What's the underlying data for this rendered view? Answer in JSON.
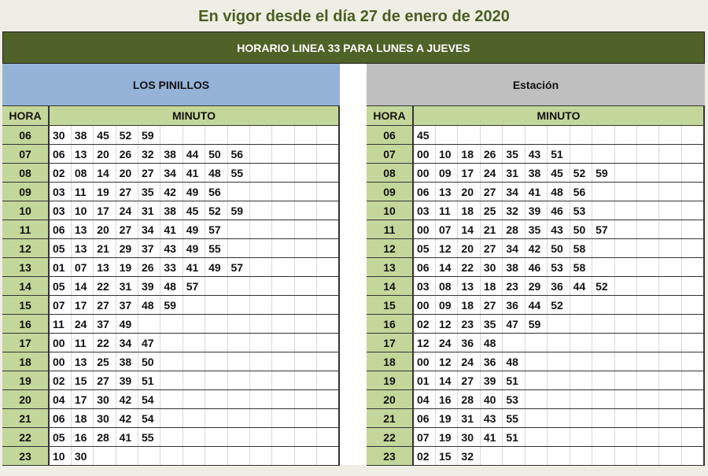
{
  "page": {
    "effective_notice": "En vigor desde el día  27 de enero de  2020",
    "banner_title": "HORARIO LINEA 33  PARA LUNES A JUEVES"
  },
  "colors": {
    "banner_bg": "#4f6228",
    "title_text": "#4a5e23",
    "left_header_bg": "#95b3d7",
    "right_header_bg": "#bfbfbf",
    "hora_bg": "#c4d79b"
  },
  "column_headers": {
    "hora": "HORA",
    "minuto": "MINUTO"
  },
  "schedules": [
    {
      "stop": "LOS PINILLOS",
      "rows": [
        {
          "hora": "06",
          "minutos": [
            "30",
            "38",
            "45",
            "52",
            "59"
          ]
        },
        {
          "hora": "07",
          "minutos": [
            "06",
            "13",
            "20",
            "26",
            "32",
            "38",
            "44",
            "50",
            "56"
          ]
        },
        {
          "hora": "08",
          "minutos": [
            "02",
            "08",
            "14",
            "20",
            "27",
            "34",
            "41",
            "48",
            "55"
          ]
        },
        {
          "hora": "09",
          "minutos": [
            "03",
            "11",
            "19",
            "27",
            "35",
            "42",
            "49",
            "56"
          ]
        },
        {
          "hora": "10",
          "minutos": [
            "03",
            "10",
            "17",
            "24",
            "31",
            "38",
            "45",
            "52",
            "59"
          ]
        },
        {
          "hora": "11",
          "minutos": [
            "06",
            "13",
            "20",
            "27",
            "34",
            "41",
            "49",
            "57"
          ]
        },
        {
          "hora": "12",
          "minutos": [
            "05",
            "13",
            "21",
            "29",
            "37",
            "43",
            "49",
            "55"
          ]
        },
        {
          "hora": "13",
          "minutos": [
            "01",
            "07",
            "13",
            "19",
            "26",
            "33",
            "41",
            "49",
            "57"
          ]
        },
        {
          "hora": "14",
          "minutos": [
            "05",
            "14",
            "22",
            "31",
            "39",
            "48",
            "57"
          ]
        },
        {
          "hora": "15",
          "minutos": [
            "07",
            "17",
            "27",
            "37",
            "48",
            "59"
          ]
        },
        {
          "hora": "16",
          "minutos": [
            "11",
            "24",
            "37",
            "49"
          ]
        },
        {
          "hora": "17",
          "minutos": [
            "00",
            "11",
            "22",
            "34",
            "47"
          ]
        },
        {
          "hora": "18",
          "minutos": [
            "00",
            "13",
            "25",
            "38",
            "50"
          ]
        },
        {
          "hora": "19",
          "minutos": [
            "02",
            "15",
            "27",
            "39",
            "51"
          ]
        },
        {
          "hora": "20",
          "minutos": [
            "04",
            "17",
            "30",
            "42",
            "54"
          ]
        },
        {
          "hora": "21",
          "minutos": [
            "06",
            "18",
            "30",
            "42",
            "54"
          ]
        },
        {
          "hora": "22",
          "minutos": [
            "05",
            "16",
            "28",
            "41",
            "55"
          ]
        },
        {
          "hora": "23",
          "minutos": [
            "10",
            "30"
          ]
        }
      ]
    },
    {
      "stop": "Estación",
      "rows": [
        {
          "hora": "06",
          "minutos": [
            "45"
          ]
        },
        {
          "hora": "07",
          "minutos": [
            "00",
            "10",
            "18",
            "26",
            "35",
            "43",
            "51"
          ]
        },
        {
          "hora": "08",
          "minutos": [
            "00",
            "09",
            "17",
            "24",
            "31",
            "38",
            "45",
            "52",
            "59"
          ]
        },
        {
          "hora": "09",
          "minutos": [
            "06",
            "13",
            "20",
            "27",
            "34",
            "41",
            "48",
            "56"
          ]
        },
        {
          "hora": "10",
          "minutos": [
            "03",
            "11",
            "18",
            "25",
            "32",
            "39",
            "46",
            "53"
          ]
        },
        {
          "hora": "11",
          "minutos": [
            "00",
            "07",
            "14",
            "21",
            "28",
            "35",
            "43",
            "50",
            "57"
          ]
        },
        {
          "hora": "12",
          "minutos": [
            "05",
            "12",
            "20",
            "27",
            "34",
            "42",
            "50",
            "58"
          ]
        },
        {
          "hora": "13",
          "minutos": [
            "06",
            "14",
            "22",
            "30",
            "38",
            "46",
            "53",
            "58"
          ]
        },
        {
          "hora": "14",
          "minutos": [
            "03",
            "08",
            "13",
            "18",
            "23",
            "29",
            "36",
            "44",
            "52"
          ]
        },
        {
          "hora": "15",
          "minutos": [
            "00",
            "09",
            "18",
            "27",
            "36",
            "44",
            "52"
          ]
        },
        {
          "hora": "16",
          "minutos": [
            "02",
            "12",
            "23",
            "35",
            "47",
            "59"
          ]
        },
        {
          "hora": "17",
          "minutos": [
            "12",
            "24",
            "36",
            "48"
          ]
        },
        {
          "hora": "18",
          "minutos": [
            "00",
            "12",
            "24",
            "36",
            "48"
          ]
        },
        {
          "hora": "19",
          "minutos": [
            "01",
            "14",
            "27",
            "39",
            "51"
          ]
        },
        {
          "hora": "20",
          "minutos": [
            "04",
            "16",
            "28",
            "40",
            "53"
          ]
        },
        {
          "hora": "21",
          "minutos": [
            "06",
            "19",
            "31",
            "43",
            "55"
          ]
        },
        {
          "hora": "22",
          "minutos": [
            "07",
            "19",
            "30",
            "41",
            "51"
          ]
        },
        {
          "hora": "23",
          "minutos": [
            "02",
            "15",
            "32"
          ]
        }
      ]
    }
  ]
}
